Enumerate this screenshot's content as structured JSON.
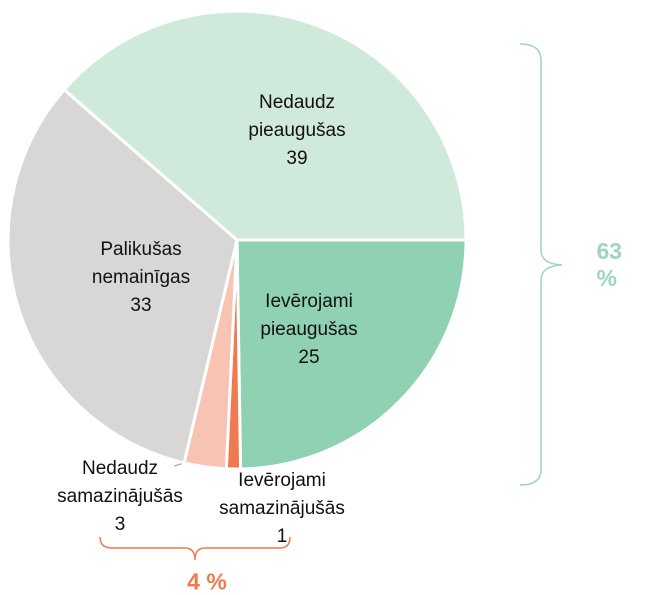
{
  "chart_data": {
    "type": "pie",
    "categories": [
      "Nedaudz pieaugušas",
      "Ievērojami pieaugušas",
      "Ievērojami samazinājušās",
      "Nedaudz samazinājušās",
      "Palikušas nemainīgas"
    ],
    "values": [
      39,
      25,
      1,
      3,
      33
    ],
    "colors": [
      "#cfeadb",
      "#8fd1b2",
      "#f07a4f",
      "#f7c4b4",
      "#d9d6d6"
    ],
    "annotations": [
      {
        "text": "63 %",
        "color": "#9dd6bb"
      },
      {
        "text": "4 %",
        "color": "#f07a4f"
      }
    ]
  }
}
